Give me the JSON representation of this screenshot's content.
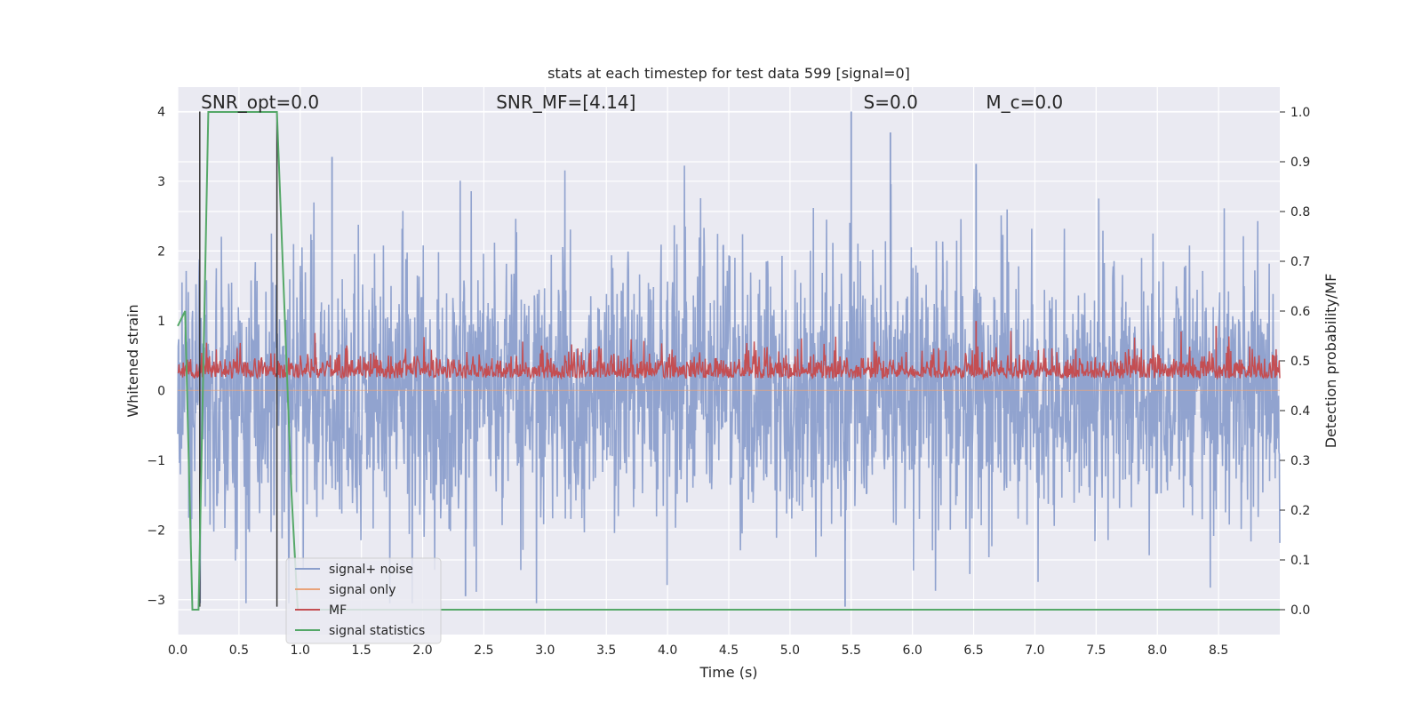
{
  "chart_data": {
    "type": "line",
    "title": "stats at each timestep for test data 599 [signal=0]",
    "xlabel": "Time (s)",
    "ylabel": "Whitened strain",
    "y2label": "Detection probability/MF",
    "xlim": [
      0.0,
      9.0
    ],
    "ylim": [
      -3.5,
      4.35
    ],
    "y2lim": [
      -0.05,
      1.05
    ],
    "xticks": [
      "0.0",
      "0.5",
      "1.0",
      "1.5",
      "2.0",
      "2.5",
      "3.0",
      "3.5",
      "4.0",
      "4.5",
      "5.0",
      "5.5",
      "6.0",
      "6.5",
      "7.0",
      "7.5",
      "8.0",
      "8.5"
    ],
    "yticks": [
      "−3",
      "−2",
      "−1",
      "0",
      "1",
      "2",
      "3",
      "4"
    ],
    "y2ticks": [
      "0.0",
      "0.1",
      "0.2",
      "0.3",
      "0.4",
      "0.5",
      "0.6",
      "0.7",
      "0.8",
      "0.9",
      "1.0"
    ],
    "grid": true,
    "legend_position": "lower-left",
    "annotations": [
      {
        "text": "SNR_opt=0.0",
        "x": 0.19
      },
      {
        "text": "SNR_MF=[4.14]",
        "x": 2.6
      },
      {
        "text": "S=0.0",
        "x": 5.6
      },
      {
        "text": "M_c=0.0",
        "x": 6.6
      }
    ],
    "series": [
      {
        "name": "signal+ noise",
        "color": "#8c9fcc",
        "axis": "left",
        "description_values": {
          "typical_range": [
            -1.8,
            1.8
          ],
          "peaks": [
            {
              "x": 5.5,
              "y": 4.0
            },
            {
              "x": 5.82,
              "y": 3.7
            },
            {
              "x": 1.26,
              "y": 3.35
            },
            {
              "x": 6.52,
              "y": 3.25
            },
            {
              "x": 5.45,
              "y": -3.1
            },
            {
              "x": 2.35,
              "y": -2.95
            }
          ]
        }
      },
      {
        "name": "signal only",
        "color": "#e9a37a",
        "axis": "left",
        "values_constant": 0.0
      },
      {
        "name": "MF",
        "color": "#c44e52",
        "axis": "right",
        "description_values": {
          "typical_range": [
            0.44,
            0.55
          ],
          "peaks": [
            {
              "x": 6.52,
              "y": 0.58
            },
            {
              "x": 8.48,
              "y": 0.57
            }
          ]
        }
      },
      {
        "name": "signal statistics",
        "color": "#55a868",
        "axis": "right",
        "x": [
          0.0,
          0.06,
          0.12,
          0.17,
          0.25,
          0.81,
          0.93,
          0.98,
          9.0
        ],
        "y": [
          0.57,
          0.6,
          0.0,
          0.0,
          1.0,
          1.0,
          0.23,
          0.0,
          0.0
        ]
      }
    ],
    "vlines": [
      {
        "x": 0.18,
        "ymin": -3.1,
        "ymax": 4.0,
        "color": "#333333"
      },
      {
        "x": 0.81,
        "ymin": -3.1,
        "ymax": 4.0,
        "color": "#333333"
      }
    ]
  }
}
